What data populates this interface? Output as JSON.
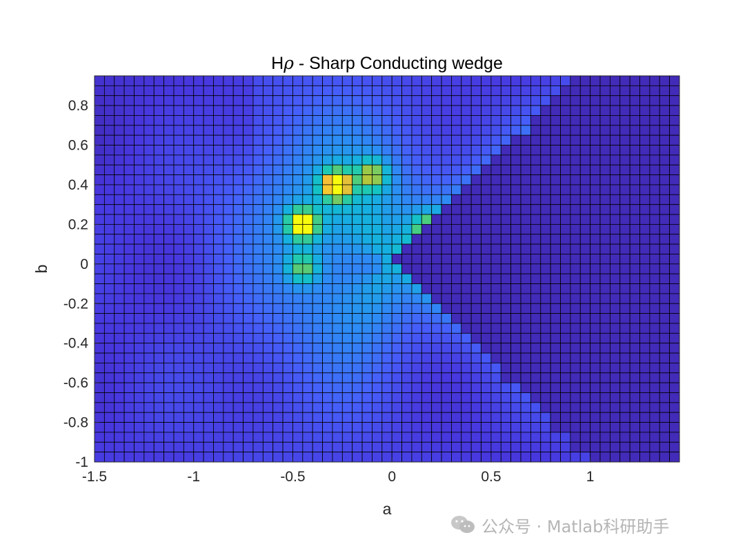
{
  "chart_data": {
    "type": "heatmap",
    "title_prefix": "H",
    "title_symbol": "ρ",
    "title_suffix": " - Sharp Conducting wedge",
    "xlabel": "a",
    "ylabel": "b",
    "xlim": [
      -1.5,
      1.45
    ],
    "ylim": [
      -1.0,
      0.95
    ],
    "xticks": [
      -1.5,
      -1,
      -0.5,
      0,
      0.5,
      1
    ],
    "xtick_labels": [
      "-1.5",
      "-1",
      "-0.5",
      "0",
      "0.5",
      "1"
    ],
    "yticks": [
      -1,
      -0.8,
      -0.6,
      -0.4,
      -0.2,
      0,
      0.2,
      0.4,
      0.6,
      0.8
    ],
    "ytick_labels": [
      "-1",
      "-0.8",
      "-0.6",
      "-0.4",
      "-0.2",
      "0",
      "0.2",
      "0.4",
      "0.6",
      "0.8"
    ],
    "grid_step": 0.05,
    "colormap": "parula",
    "wedge_apex": [
      0.0,
      0.0
    ],
    "wedge_edges": [
      {
        "name": "upper",
        "from": [
          0.0,
          0.0
        ],
        "to": [
          0.95,
          0.95
        ]
      },
      {
        "name": "lower",
        "from": [
          0.0,
          0.0
        ],
        "to": [
          0.5,
          -0.5
        ]
      }
    ],
    "field_sources": [
      {
        "x": -0.45,
        "y": 0.2,
        "peak": 1.0
      },
      {
        "x": -0.28,
        "y": 0.4,
        "peak": 0.95
      },
      {
        "x": -0.45,
        "y": -0.02,
        "peak": 0.55
      },
      {
        "x": -0.1,
        "y": 0.45,
        "peak": 0.6
      },
      {
        "x": 0.18,
        "y": 0.18,
        "peak": 0.5
      }
    ],
    "edge_cell_color": "#000000",
    "background_level": 0.12
  },
  "watermark": {
    "icon": "wechat-icon",
    "text": "公众号 · Matlab科研助手"
  }
}
